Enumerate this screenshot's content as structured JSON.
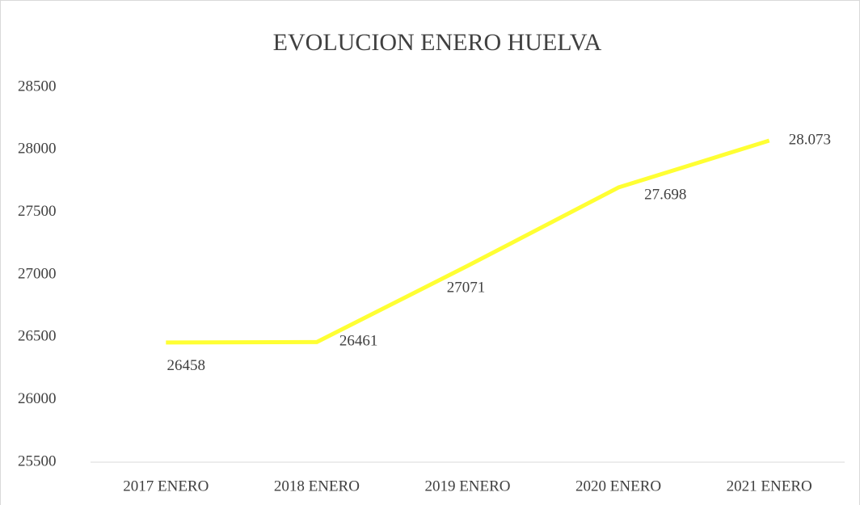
{
  "chart_data": {
    "type": "line",
    "title": "EVOLUCION ENERO HUELVA",
    "categories": [
      "2017 ENERO",
      "2018 ENERO",
      "2019 ENERO",
      "2020 ENERO",
      "2021 ENERO"
    ],
    "series": [
      {
        "name": "HUELVA",
        "color": "#ffff33",
        "values": [
          26458,
          26461,
          27071,
          27698,
          28073
        ],
        "value_labels": [
          "26458",
          "26461",
          "27071",
          "27.698",
          "28.073"
        ]
      }
    ],
    "ylim": [
      25500,
      28500
    ],
    "yticks": [
      25500,
      26000,
      26500,
      27000,
      27500,
      28000,
      28500
    ],
    "grid": false
  }
}
